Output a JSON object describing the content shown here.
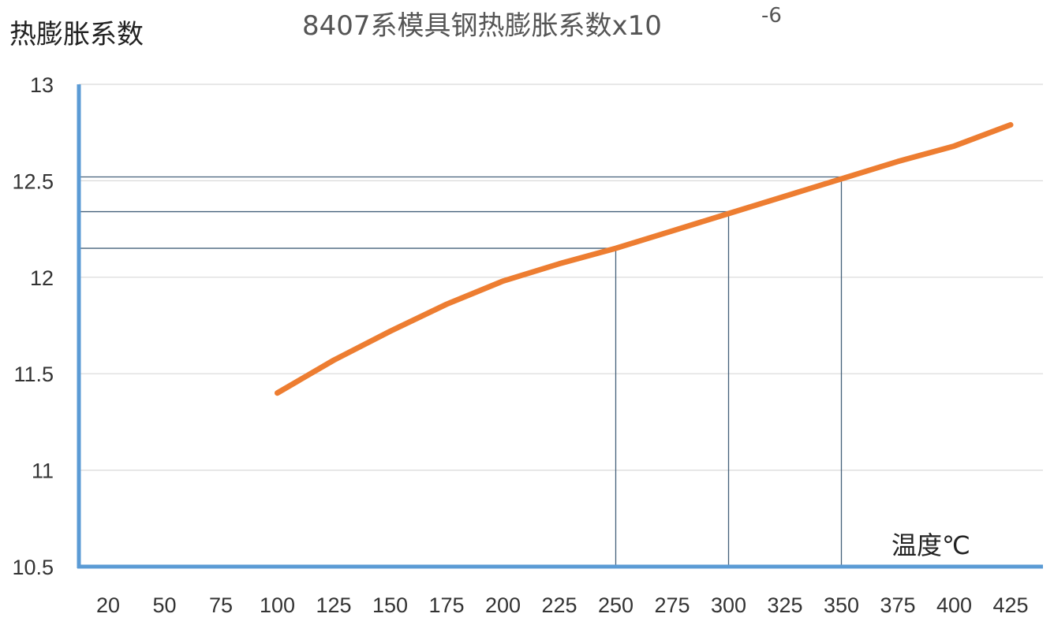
{
  "chart_data": {
    "type": "line",
    "title": "8407系模具钢热膨胀系数x10",
    "title_exponent": "-6",
    "ylabel": "热膨胀系数",
    "xlabel": "温度℃",
    "categories": [
      "20",
      "50",
      "75",
      "100",
      "125",
      "150",
      "175",
      "200",
      "225",
      "250",
      "275",
      "300",
      "325",
      "350",
      "375",
      "400",
      "425"
    ],
    "ylim": [
      10.5,
      13
    ],
    "yticks": [
      "10.5",
      "11",
      "11.5",
      "12",
      "12.5",
      "13"
    ],
    "grid": true,
    "series": [
      {
        "color": "#ED7D31",
        "x": [
          100,
          125,
          150,
          175,
          200,
          225,
          250,
          275,
          300,
          325,
          350,
          375,
          400,
          425
        ],
        "values": [
          11.4,
          11.57,
          11.72,
          11.86,
          11.98,
          12.07,
          12.15,
          12.24,
          12.33,
          12.42,
          12.51,
          12.6,
          12.68,
          12.79
        ]
      }
    ],
    "reference_lines": [
      {
        "x": 250,
        "y": 12.15
      },
      {
        "x": 300,
        "y": 12.34
      },
      {
        "x": 350,
        "y": 12.52
      }
    ],
    "colors": {
      "axis": "#5B9BD5",
      "grid": "#D9D9D9",
      "reference": "#44607A"
    }
  }
}
